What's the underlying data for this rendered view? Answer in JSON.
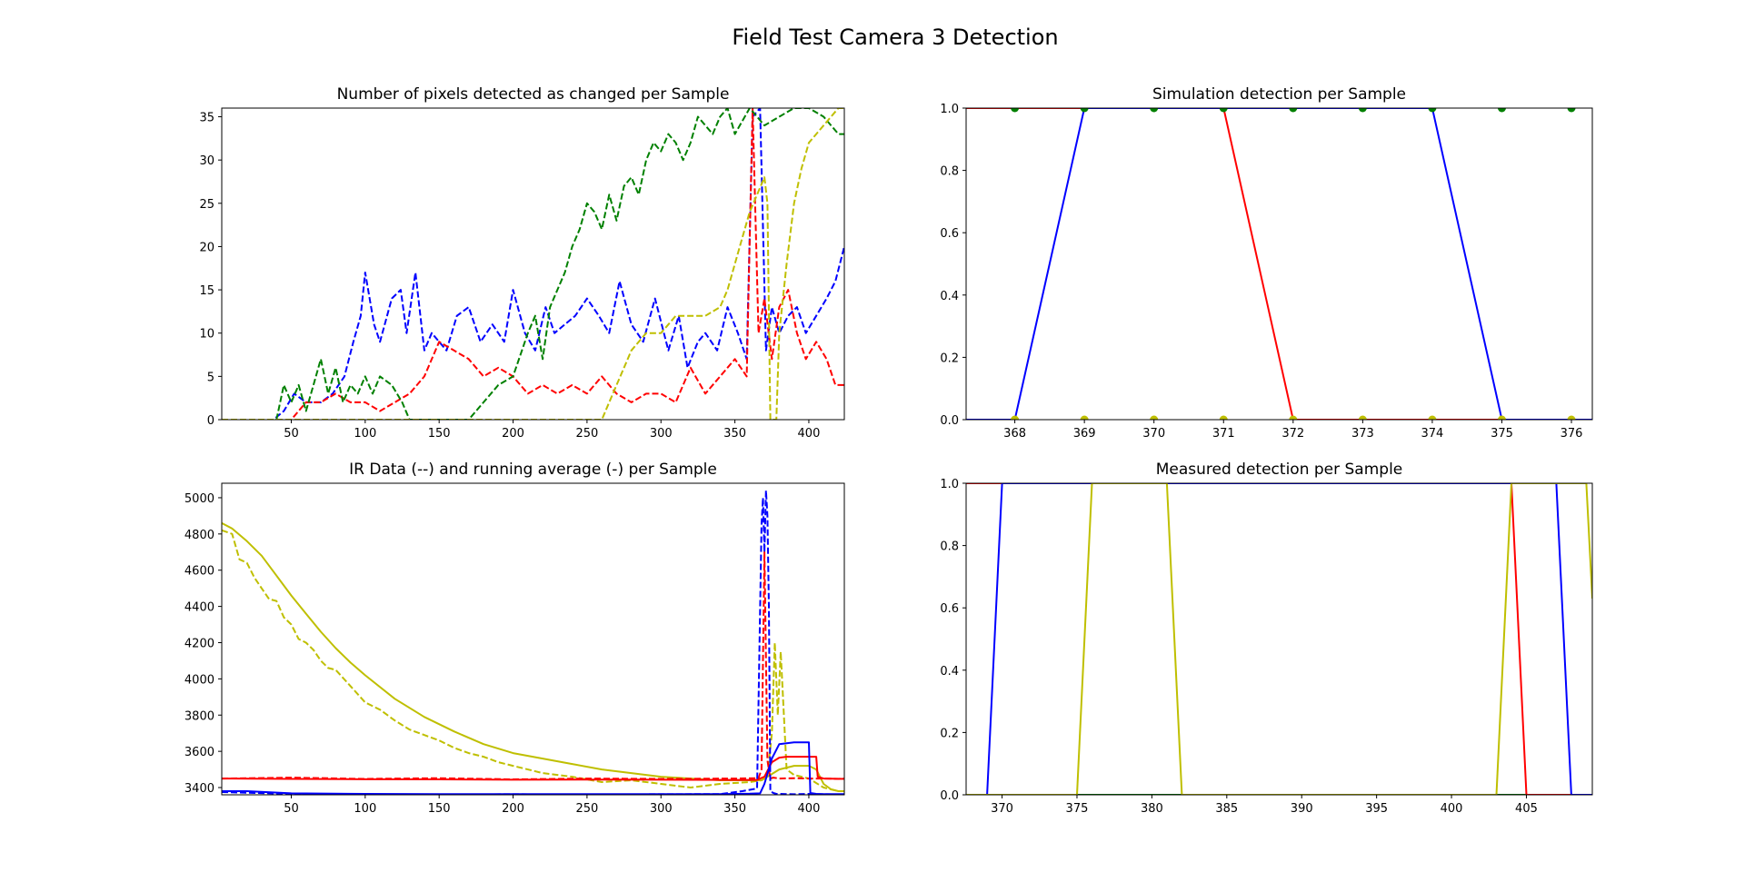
{
  "figure": {
    "title": "Field Test Camera 3 Detection"
  },
  "chart_data": [
    {
      "type": "line",
      "title": "Number of pixels detected as changed per Sample",
      "xlim": [
        3,
        424
      ],
      "ylim": [
        0,
        36
      ],
      "xticks": [
        50,
        100,
        150,
        200,
        250,
        300,
        350,
        400
      ],
      "yticks": [
        0,
        5,
        10,
        15,
        20,
        25,
        30,
        35
      ],
      "series": [
        {
          "color": "#0000ff",
          "style": "dashed",
          "x": [
            3,
            38,
            45,
            52,
            60,
            70,
            78,
            86,
            92,
            97,
            100,
            106,
            110,
            118,
            124,
            128,
            134,
            140,
            145,
            150,
            155,
            162,
            170,
            178,
            186,
            194,
            200,
            208,
            215,
            222,
            228,
            235,
            242,
            250,
            258,
            265,
            272,
            280,
            288,
            296,
            305,
            312,
            318,
            325,
            330,
            338,
            345,
            352,
            358,
            362,
            367,
            371,
            375,
            380,
            386,
            392,
            398,
            405,
            412,
            418,
            424
          ],
          "y": [
            0,
            0,
            1,
            3,
            2,
            2,
            3,
            5,
            9,
            12,
            17,
            11,
            9,
            14,
            15,
            10,
            17,
            8,
            10,
            9,
            8,
            12,
            13,
            9,
            11,
            9,
            15,
            10,
            8,
            13,
            10,
            11,
            12,
            14,
            12,
            10,
            16,
            11,
            9,
            14,
            8,
            12,
            6,
            9,
            10,
            8,
            13,
            10,
            7,
            35,
            36,
            8,
            13,
            10,
            12,
            13,
            10,
            12,
            14,
            16,
            20
          ]
        },
        {
          "color": "#ff0000",
          "style": "dashed",
          "x": [
            3,
            50,
            60,
            70,
            80,
            90,
            100,
            110,
            120,
            130,
            140,
            150,
            160,
            170,
            180,
            190,
            200,
            210,
            220,
            230,
            240,
            250,
            260,
            270,
            280,
            290,
            300,
            310,
            320,
            330,
            340,
            350,
            358,
            362,
            366,
            370,
            375,
            380,
            386,
            392,
            398,
            405,
            412,
            418,
            424
          ],
          "y": [
            0,
            0,
            2,
            2,
            3,
            2,
            2,
            1,
            2,
            3,
            5,
            9,
            8,
            7,
            5,
            6,
            5,
            3,
            4,
            3,
            4,
            3,
            5,
            3,
            2,
            3,
            3,
            2,
            6,
            3,
            5,
            7,
            5,
            36,
            10,
            14,
            7,
            13,
            15,
            10,
            7,
            9,
            7,
            4,
            4
          ]
        },
        {
          "color": "#008000",
          "style": "dashed",
          "x": [
            3,
            40,
            45,
            50,
            55,
            60,
            65,
            70,
            75,
            80,
            85,
            90,
            95,
            100,
            105,
            110,
            118,
            125,
            130,
            138,
            145,
            150,
            160,
            170,
            180,
            190,
            200,
            210,
            215,
            220,
            225,
            230,
            235,
            240,
            245,
            250,
            255,
            260,
            265,
            270,
            275,
            280,
            285,
            290,
            295,
            300,
            305,
            310,
            315,
            320,
            325,
            330,
            335,
            340,
            345,
            350,
            360,
            370,
            380,
            390,
            400,
            410,
            415,
            420,
            424
          ],
          "y": [
            0,
            0,
            4,
            2,
            4,
            1,
            4,
            7,
            3,
            6,
            2,
            4,
            3,
            5,
            3,
            5,
            4,
            2,
            0,
            0,
            0,
            0,
            0,
            0,
            2,
            4,
            5,
            10,
            12,
            7,
            13,
            15,
            17,
            20,
            22,
            25,
            24,
            22,
            26,
            23,
            27,
            28,
            26,
            30,
            32,
            31,
            33,
            32,
            30,
            32,
            35,
            34,
            33,
            35,
            36,
            33,
            36,
            34,
            35,
            36,
            36,
            35,
            34,
            33,
            33
          ]
        },
        {
          "color": "#bfbf00",
          "style": "dashed",
          "x": [
            3,
            260,
            265,
            270,
            275,
            280,
            290,
            300,
            305,
            310,
            320,
            330,
            340,
            345,
            350,
            355,
            360,
            365,
            370,
            372,
            374,
            376,
            378,
            380,
            385,
            390,
            395,
            400,
            405,
            410,
            415,
            420,
            424
          ],
          "y": [
            0,
            0,
            2,
            4,
            6,
            8,
            10,
            10,
            11,
            12,
            12,
            12,
            13,
            15,
            18,
            21,
            24,
            26,
            28,
            25,
            0,
            0,
            0,
            10,
            18,
            25,
            29,
            32,
            33,
            34,
            35,
            36,
            36
          ]
        }
      ]
    },
    {
      "type": "line",
      "title": "Simulation detection per Sample",
      "xlim": [
        367.3,
        376.3
      ],
      "ylim": [
        0,
        1
      ],
      "xticks": [
        368,
        369,
        370,
        371,
        372,
        373,
        374,
        375,
        376
      ],
      "yticks": [
        0.0,
        0.2,
        0.4,
        0.6,
        0.8,
        1.0
      ],
      "series": [
        {
          "color": "#ff0000",
          "style": "solid",
          "markers": false,
          "x": [
            367.3,
            368,
            369,
            370,
            371,
            372,
            373,
            374,
            375,
            376,
            376.3
          ],
          "y": [
            1,
            1,
            1,
            1,
            1,
            0,
            0,
            0,
            0,
            0,
            0
          ]
        },
        {
          "color": "#0000ff",
          "style": "solid",
          "markers": false,
          "x": [
            367.3,
            368,
            369,
            370,
            371,
            372,
            373,
            374,
            375,
            376,
            376.3
          ],
          "y": [
            0,
            0,
            1,
            1,
            1,
            1,
            1,
            1,
            0,
            0,
            0
          ]
        },
        {
          "color": "#008000",
          "style": "none",
          "markers": true,
          "x": [
            368,
            369,
            370,
            371,
            372,
            373,
            374,
            375,
            376
          ],
          "y": [
            1,
            1,
            1,
            1,
            1,
            1,
            1,
            1,
            1
          ]
        },
        {
          "color": "#bfbf00",
          "style": "none",
          "markers": true,
          "x": [
            368,
            369,
            370,
            371,
            372,
            373,
            374,
            375,
            376
          ],
          "y": [
            0,
            0,
            0,
            0,
            0,
            0,
            0,
            0,
            0
          ]
        }
      ]
    },
    {
      "type": "line",
      "title": "IR Data (--) and running average (-) per Sample",
      "xlim": [
        3,
        424
      ],
      "ylim": [
        3360,
        5080
      ],
      "xticks": [
        50,
        100,
        150,
        200,
        250,
        300,
        350,
        400
      ],
      "yticks": [
        3400,
        3600,
        3800,
        4000,
        4200,
        4400,
        4600,
        4800,
        5000
      ],
      "series": [
        {
          "color": "#bfbf00",
          "style": "dashed",
          "x": [
            3,
            10,
            15,
            20,
            25,
            30,
            35,
            40,
            45,
            50,
            55,
            60,
            65,
            70,
            75,
            80,
            90,
            100,
            110,
            120,
            130,
            140,
            150,
            160,
            170,
            180,
            190,
            200,
            220,
            240,
            260,
            280,
            300,
            320,
            340,
            360,
            368,
            372,
            375,
            377,
            379,
            381,
            385,
            390,
            400,
            410,
            420,
            424
          ],
          "y": [
            4820,
            4800,
            4660,
            4640,
            4560,
            4500,
            4440,
            4430,
            4340,
            4300,
            4220,
            4200,
            4160,
            4100,
            4060,
            4050,
            3960,
            3870,
            3830,
            3770,
            3720,
            3690,
            3660,
            3620,
            3590,
            3570,
            3540,
            3520,
            3480,
            3460,
            3430,
            3440,
            3420,
            3400,
            3420,
            3430,
            3440,
            3460,
            3700,
            4200,
            3800,
            4150,
            3500,
            3470,
            3450,
            3400,
            3380,
            3380
          ]
        },
        {
          "color": "#bfbf00",
          "style": "solid",
          "x": [
            3,
            10,
            20,
            30,
            40,
            50,
            60,
            70,
            80,
            90,
            100,
            120,
            140,
            160,
            180,
            200,
            220,
            240,
            260,
            280,
            300,
            320,
            340,
            360,
            368,
            372,
            376,
            380,
            390,
            400,
            405,
            410,
            415,
            420,
            424
          ],
          "y": [
            4860,
            4830,
            4760,
            4680,
            4570,
            4460,
            4360,
            4260,
            4170,
            4090,
            4020,
            3890,
            3790,
            3710,
            3640,
            3590,
            3560,
            3530,
            3500,
            3480,
            3460,
            3450,
            3440,
            3440,
            3440,
            3460,
            3480,
            3500,
            3520,
            3520,
            3500,
            3420,
            3390,
            3380,
            3380
          ]
        },
        {
          "color": "#ff0000",
          "style": "dashed",
          "x": [
            3,
            50,
            100,
            150,
            200,
            250,
            300,
            350,
            366,
            368,
            370,
            372,
            374,
            376,
            380,
            390,
            400,
            410,
            420,
            424
          ],
          "y": [
            3450,
            3455,
            3448,
            3452,
            3445,
            3450,
            3448,
            3450,
            3452,
            3500,
            4700,
            3550,
            3450,
            3455,
            3450,
            3452,
            3450,
            3450,
            3448,
            3450
          ]
        },
        {
          "color": "#ff0000",
          "style": "solid",
          "x": [
            3,
            50,
            100,
            150,
            200,
            250,
            300,
            350,
            365,
            370,
            375,
            380,
            385,
            390,
            400,
            405,
            406,
            410,
            424
          ],
          "y": [
            3450,
            3448,
            3446,
            3445,
            3443,
            3444,
            3443,
            3442,
            3442,
            3460,
            3540,
            3565,
            3570,
            3570,
            3570,
            3570,
            3460,
            3450,
            3448
          ]
        },
        {
          "color": "#0000ff",
          "style": "dashed",
          "x": [
            3,
            50,
            100,
            150,
            200,
            250,
            300,
            340,
            355,
            365,
            368,
            369,
            370,
            371,
            372,
            373,
            374,
            376,
            378,
            380,
            390,
            400,
            410,
            420,
            424
          ],
          "y": [
            3375,
            3365,
            3362,
            3362,
            3363,
            3362,
            3363,
            3364,
            3380,
            3395,
            4850,
            5000,
            4700,
            5040,
            4900,
            4400,
            3380,
            3370,
            3365,
            3365,
            3363,
            3365,
            3363,
            3362,
            3363
          ]
        },
        {
          "color": "#0000ff",
          "style": "solid",
          "x": [
            3,
            20,
            50,
            100,
            150,
            200,
            250,
            300,
            340,
            360,
            367,
            370,
            375,
            380,
            390,
            400,
            401,
            405,
            410,
            420,
            424
          ],
          "y": [
            3380,
            3380,
            3368,
            3365,
            3364,
            3364,
            3364,
            3364,
            3364,
            3366,
            3368,
            3420,
            3560,
            3640,
            3650,
            3650,
            3370,
            3365,
            3364,
            3364,
            3364
          ]
        }
      ]
    },
    {
      "type": "line",
      "title": "Measured detection per Sample",
      "xlim": [
        367.6,
        409.4
      ],
      "ylim": [
        0,
        1
      ],
      "xticks": [
        370,
        375,
        380,
        385,
        390,
        395,
        400,
        405
      ],
      "yticks": [
        0.0,
        0.2,
        0.4,
        0.6,
        0.8,
        1.0
      ],
      "series": [
        {
          "color": "#008000",
          "style": "solid",
          "x": [
            367.6,
            409.4
          ],
          "y": [
            0,
            0
          ]
        },
        {
          "color": "#ff0000",
          "style": "solid",
          "x": [
            367.6,
            404,
            405,
            409.4
          ],
          "y": [
            1,
            1,
            0,
            0
          ]
        },
        {
          "color": "#0000ff",
          "style": "solid",
          "x": [
            367.6,
            369,
            370,
            407,
            408,
            409.4
          ],
          "y": [
            0,
            0,
            1,
            1,
            0,
            0
          ]
        },
        {
          "color": "#bfbf00",
          "style": "solid",
          "x": [
            367.6,
            375,
            376,
            381,
            382,
            403,
            404,
            409,
            409.4
          ],
          "y": [
            0,
            0,
            1,
            1,
            0,
            0,
            1,
            1,
            0.63
          ]
        }
      ]
    }
  ]
}
